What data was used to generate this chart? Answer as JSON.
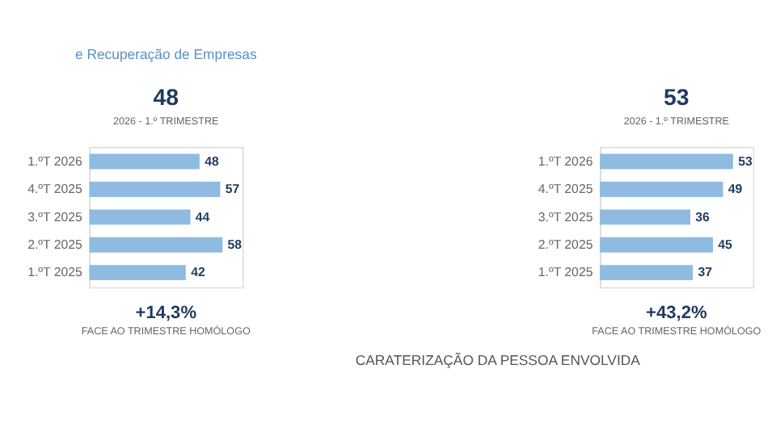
{
  "chart_data": [
    {
      "type": "bar",
      "orientation": "horizontal",
      "title": "e Recuperação de Empresas",
      "subtitle": "2026 - 1.º TRIMESTRE",
      "categories": [
        "1.ºT 2026",
        "4.ºT 2025",
        "3.ºT 2025",
        "2.ºT 2025",
        "1.ºT 2025"
      ],
      "values": [
        48,
        57,
        44,
        58,
        42
      ],
      "color": "#8fbbe0",
      "data_labels": true,
      "tick_labels": "y",
      "annotations": [
        "48",
        "+14,3%",
        "FACE AO TRIMESTRE HOMÓLOGO"
      ]
    },
    {
      "type": "bar",
      "orientation": "horizontal",
      "subtitle": "2026 - 1.º TRIMESTRE",
      "categories": [
        "1.ºT 2026",
        "4.ºT 2025",
        "3.ºT 2025",
        "2.ºT 2025",
        "1.ºT 2025"
      ],
      "values": [
        53,
        49,
        36,
        45,
        37
      ],
      "color": "#8fbbe0",
      "data_labels": true,
      "tick_labels": "y",
      "annotations": [
        "53",
        "+43,2%",
        "FACE AO TRIMESTRE HOMÓLOGO",
        "CARATERIZAÇÃO DA PESSOA ENVOLVIDA"
      ]
    }
  ]
}
